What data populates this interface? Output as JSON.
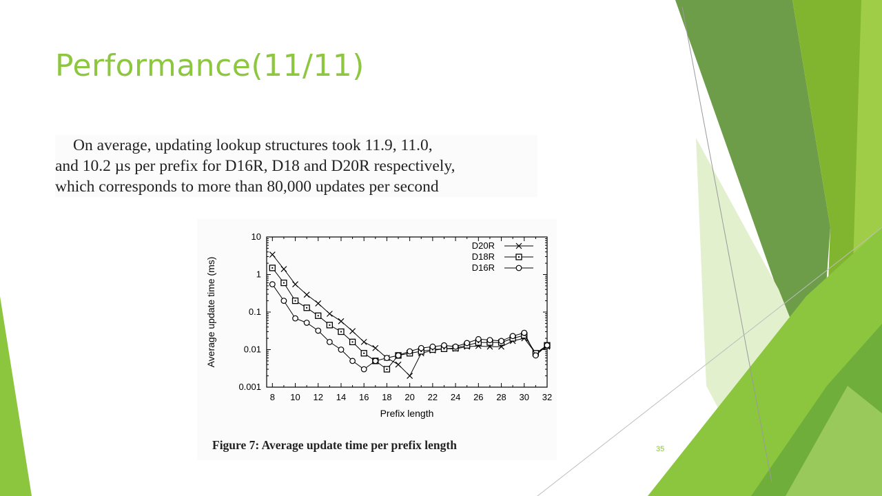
{
  "slide": {
    "title": "Performance(11/11)",
    "page_number": "35",
    "colors": {
      "accent": "#8dc63f",
      "green_dark": "#6a9a47",
      "green_mid": "#7fb13a",
      "green_light": "#d9ebbf"
    }
  },
  "excerpt": {
    "lines": [
      "On average, updating lookup structures took 11.9, 11.0,",
      "and 10.2 µs per prefix for D16R, D18 and D20R respectively,",
      "which corresponds to more than 80,000 updates per second"
    ]
  },
  "figure": {
    "caption": "Figure 7: Average update time per prefix length"
  },
  "chart_data": {
    "type": "line",
    "xlabel": "Prefix length",
    "ylabel": "Average update time (ms)",
    "yscale": "log",
    "xlim": [
      7.5,
      32
    ],
    "ylim": [
      0.001,
      10
    ],
    "xticks": [
      "8",
      "10",
      "12",
      "14",
      "16",
      "18",
      "20",
      "22",
      "24",
      "26",
      "28",
      "30",
      "32"
    ],
    "yticks": [
      "0.001",
      "0.01",
      "0.1",
      "1",
      "10"
    ],
    "legend_position": "top-right",
    "x": [
      8,
      9,
      10,
      11,
      12,
      13,
      14,
      15,
      16,
      17,
      18,
      19,
      20,
      21,
      22,
      23,
      24,
      25,
      26,
      27,
      28,
      29,
      30,
      31,
      32
    ],
    "series": [
      {
        "name": "D20R",
        "marker": "x",
        "values": [
          3.4,
          1.4,
          0.55,
          0.29,
          0.17,
          0.09,
          0.057,
          0.031,
          0.016,
          0.011,
          0.006,
          0.004,
          0.002,
          0.008,
          0.0095,
          0.0105,
          0.0105,
          0.012,
          0.0125,
          0.012,
          0.012,
          0.017,
          0.02,
          0.008,
          0.012
        ]
      },
      {
        "name": "D18R",
        "marker": "square",
        "values": [
          1.5,
          0.6,
          0.2,
          0.13,
          0.08,
          0.045,
          0.03,
          0.016,
          0.008,
          0.005,
          0.003,
          0.007,
          0.008,
          0.009,
          0.01,
          0.0105,
          0.011,
          0.013,
          0.0155,
          0.0155,
          0.0155,
          0.02,
          0.024,
          0.008,
          0.013
        ]
      },
      {
        "name": "D16R",
        "marker": "circle",
        "values": [
          0.55,
          0.2,
          0.068,
          0.052,
          0.032,
          0.016,
          0.01,
          0.005,
          0.003,
          0.005,
          0.006,
          0.007,
          0.009,
          0.011,
          0.012,
          0.013,
          0.012,
          0.015,
          0.019,
          0.018,
          0.017,
          0.023,
          0.028,
          0.007,
          0.013
        ]
      }
    ]
  }
}
